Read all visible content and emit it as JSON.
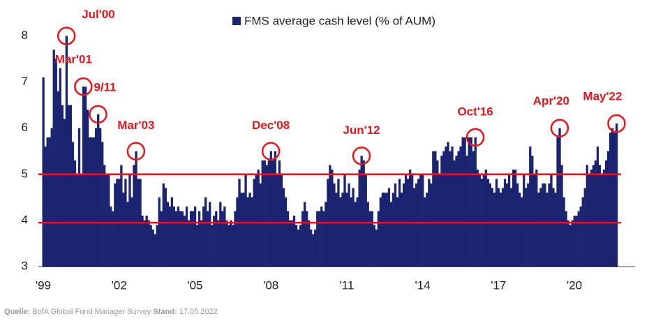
{
  "chart_data": {
    "type": "bar",
    "series": [
      {
        "name": "FMS average cash level (% of AUM)",
        "color": "#1b2470",
        "values": [
          7.1,
          5.6,
          5.8,
          5.8,
          6.0,
          7.7,
          7.5,
          6.8,
          7.3,
          6.5,
          6.2,
          8.0,
          6.5,
          6.5,
          5.7,
          5.3,
          5.0,
          6.0,
          5.0,
          6.9,
          6.9,
          6.4,
          5.8,
          5.8,
          5.8,
          6.0,
          6.3,
          6.0,
          5.7,
          5.2,
          5.0,
          5.0,
          4.3,
          4.2,
          4.8,
          4.9,
          4.9,
          5.2,
          4.6,
          4.9,
          4.4,
          5.0,
          4.5,
          5.2,
          5.5,
          4.9,
          4.9,
          4.1,
          4.0,
          4.1,
          4.0,
          3.9,
          3.8,
          3.7,
          3.9,
          4.5,
          4.2,
          4.8,
          4.7,
          4.4,
          4.3,
          4.5,
          4.3,
          4.2,
          4.3,
          4.2,
          4.2,
          4.1,
          4.3,
          4.0,
          4.2,
          4.2,
          4.3,
          3.9,
          4.2,
          4.0,
          4.3,
          4.5,
          4.2,
          4.4,
          3.9,
          4.1,
          4.2,
          4.0,
          4.4,
          4.2,
          4.3,
          4.0,
          3.9,
          4.0,
          3.9,
          4.2,
          4.5,
          4.9,
          4.6,
          4.6,
          5.0,
          4.5,
          4.6,
          4.5,
          4.9,
          5.0,
          5.1,
          4.8,
          5.3,
          5.3,
          5.2,
          5.3,
          5.5,
          5.3,
          5.5,
          5.0,
          5.3,
          5.0,
          4.7,
          4.5,
          4.2,
          4.0,
          4.0,
          4.1,
          3.9,
          3.8,
          3.9,
          4.2,
          4.4,
          4.2,
          4.0,
          3.8,
          3.7,
          3.8,
          4.2,
          4.2,
          4.3,
          4.2,
          4.4,
          4.9,
          5.2,
          5.1,
          4.8,
          4.6,
          4.9,
          4.5,
          4.6,
          5.0,
          4.6,
          4.8,
          4.5,
          4.7,
          4.4,
          4.5,
          5.1,
          5.4,
          5.3,
          5.0,
          4.4,
          4.2,
          4.2,
          3.9,
          3.8,
          4.2,
          4.5,
          4.6,
          4.6,
          4.6,
          4.7,
          4.4,
          4.6,
          4.8,
          4.5,
          4.9,
          4.6,
          4.8,
          5.0,
          4.9,
          5.1,
          5.0,
          4.7,
          4.8,
          4.9,
          5.0,
          5.0,
          4.5,
          4.6,
          4.9,
          4.8,
          5.5,
          5.5,
          5.3,
          5.0,
          5.4,
          5.5,
          5.6,
          5.7,
          5.5,
          5.6,
          5.3,
          5.4,
          5.5,
          5.6,
          5.8,
          5.8,
          5.4,
          5.8,
          5.8,
          5.5,
          5.8,
          5.1,
          5.0,
          4.9,
          5.0,
          5.1,
          4.9,
          4.8,
          4.7,
          4.6,
          4.9,
          4.7,
          4.6,
          4.7,
          4.9,
          4.8,
          5.0,
          4.7,
          5.1,
          5.1,
          4.8,
          4.6,
          4.5,
          5.0,
          4.7,
          4.8,
          5.6,
          5.4,
          5.0,
          5.1,
          4.6,
          4.7,
          4.8,
          4.8,
          4.6,
          4.8,
          5.0,
          4.7,
          4.6,
          5.8,
          6.0,
          5.2,
          4.5,
          4.2,
          4.0,
          3.9,
          4.0,
          4.1,
          4.1,
          4.2,
          4.3,
          4.5,
          4.7,
          5.2,
          5.0,
          5.1,
          5.2,
          5.3,
          5.6,
          5.2,
          5.0,
          5.1,
          5.3,
          5.5,
          5.9,
          6.0,
          5.9,
          6.1
        ]
      }
    ],
    "categories": [
      "'99",
      null,
      null,
      null,
      null,
      null,
      null,
      null,
      null,
      null,
      null,
      null,
      null,
      null,
      null,
      null,
      null,
      null,
      null,
      null,
      null,
      null,
      null,
      null,
      null,
      null,
      null,
      null,
      null,
      null,
      null,
      null,
      null,
      null,
      null,
      null,
      "'02",
      null,
      null,
      null,
      null,
      null,
      null,
      null,
      null,
      null,
      null,
      null,
      null,
      null,
      null,
      null,
      null,
      null,
      null,
      null,
      null,
      null,
      null,
      null,
      null,
      null,
      null,
      null,
      null,
      null,
      null,
      null,
      null,
      null,
      null,
      null,
      "'05",
      null,
      null,
      null,
      null,
      null,
      null,
      null,
      null,
      null,
      null,
      null,
      null,
      null,
      null,
      null,
      null,
      null,
      null,
      null,
      null,
      null,
      null,
      null,
      null,
      null,
      null,
      null,
      null,
      null,
      null,
      null,
      null,
      null,
      null,
      null,
      "'08",
      null,
      null,
      null,
      null,
      null,
      null,
      null,
      null,
      null,
      null,
      null,
      null,
      null,
      null,
      null,
      null,
      null,
      null,
      null,
      null,
      null,
      null,
      null,
      null,
      null,
      null,
      null,
      null,
      null,
      null,
      null,
      null,
      null,
      null,
      null,
      "'11",
      null,
      null,
      null,
      null,
      null,
      null,
      null,
      null,
      null,
      null,
      null,
      null,
      null,
      null,
      null,
      null,
      null,
      null,
      null,
      null,
      null,
      null,
      null,
      null,
      null,
      null,
      null,
      null,
      null,
      null,
      null,
      null,
      null,
      null,
      null,
      "'14",
      null,
      null,
      null,
      null,
      null,
      null,
      null,
      null,
      null,
      null,
      null,
      null,
      null,
      null,
      null,
      null,
      null,
      null,
      null,
      null,
      null,
      null,
      null,
      null,
      null,
      null,
      null,
      null,
      null,
      null,
      null,
      null,
      null,
      null,
      null,
      "'17",
      null,
      null,
      null,
      null,
      null,
      null,
      null,
      null,
      null,
      null,
      null,
      null,
      null,
      null,
      null,
      null,
      null,
      null,
      null,
      null,
      null,
      null,
      null,
      null,
      null,
      null,
      null,
      null,
      null,
      null,
      null,
      null,
      null,
      null,
      null,
      "'20",
      null,
      null,
      null,
      null,
      null,
      null,
      null,
      null,
      null,
      null,
      null,
      null,
      null,
      null,
      null,
      null,
      null,
      null,
      null,
      null
    ],
    "ylim": [
      3,
      8.4
    ],
    "yticks": [
      3,
      4,
      5,
      6,
      7,
      8
    ],
    "reference_lines": [
      {
        "value": 5,
        "color": "#e8141b"
      },
      {
        "value": 3.95,
        "color": "#e8141b"
      }
    ],
    "annotations": [
      "Jul'00",
      "Mar'01",
      "9/11",
      "Mar'03",
      "Dec'08",
      "Jun'12",
      "Oct'16",
      "Apr'20",
      "May'22"
    ],
    "annotation_color": "#e8141b",
    "source": [
      "Quelle:",
      "BofA Global Fund Manager Survey",
      "Stand:",
      "17.05.2022"
    ]
  }
}
